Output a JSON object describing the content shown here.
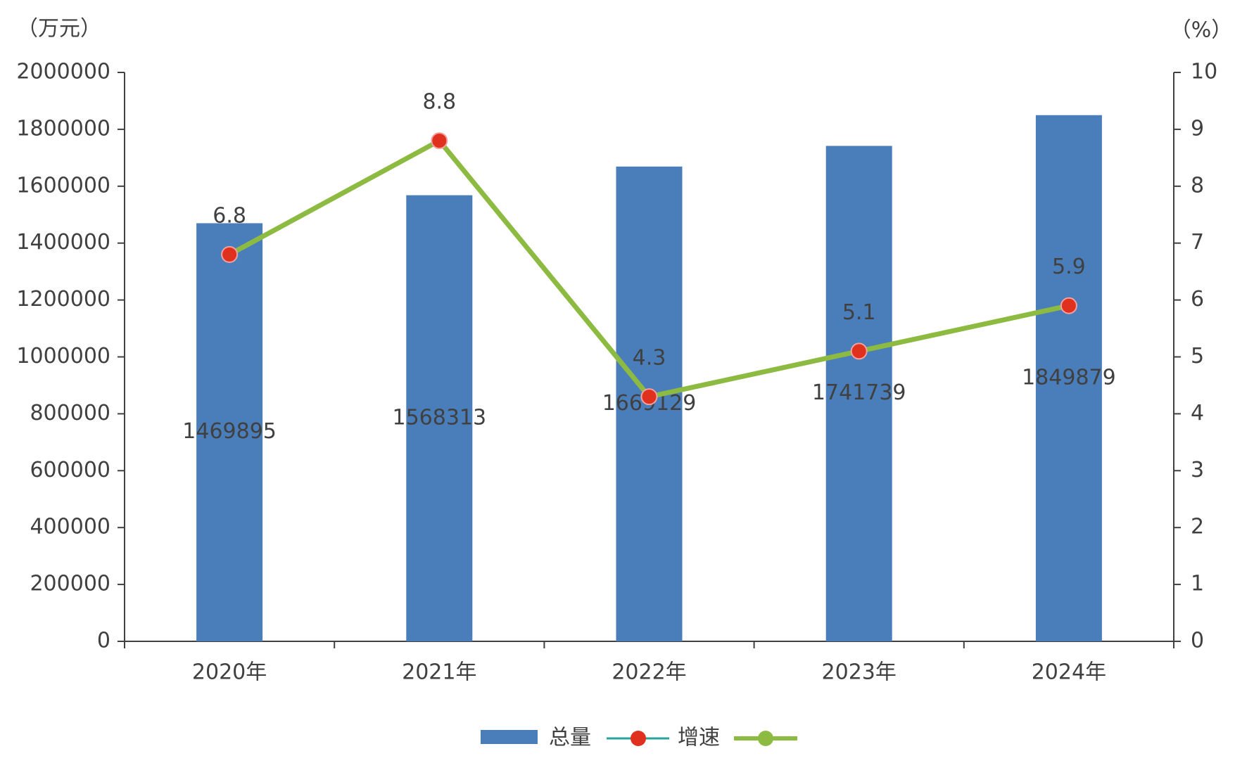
{
  "chart_data": {
    "type": "bar-line",
    "y_label": "（万元）",
    "y2_label": "（%）",
    "categories": [
      "2020年",
      "2021年",
      "2022年",
      "2023年",
      "2024年"
    ],
    "series": [
      {
        "name": "总量",
        "type": "bar",
        "color": "#4a7ebb",
        "values": [
          1469895,
          1568313,
          1669129,
          1741739,
          1849879
        ]
      },
      {
        "name": "增速",
        "type": "line",
        "axis": "y2",
        "color": "#8dba41",
        "marker_color": "#e0301e",
        "values": [
          6.8,
          8.8,
          4.3,
          5.1,
          5.9
        ]
      }
    ],
    "ylim": [
      0,
      2000000
    ],
    "yticks": [
      0,
      200000,
      400000,
      600000,
      800000,
      1000000,
      1200000,
      1400000,
      1600000,
      1800000,
      2000000
    ],
    "y2lim": [
      0,
      10
    ],
    "y2ticks": [
      0,
      1,
      2,
      3,
      4,
      5,
      6,
      7,
      8,
      9,
      10
    ],
    "grid": false,
    "legend": "bottom"
  }
}
